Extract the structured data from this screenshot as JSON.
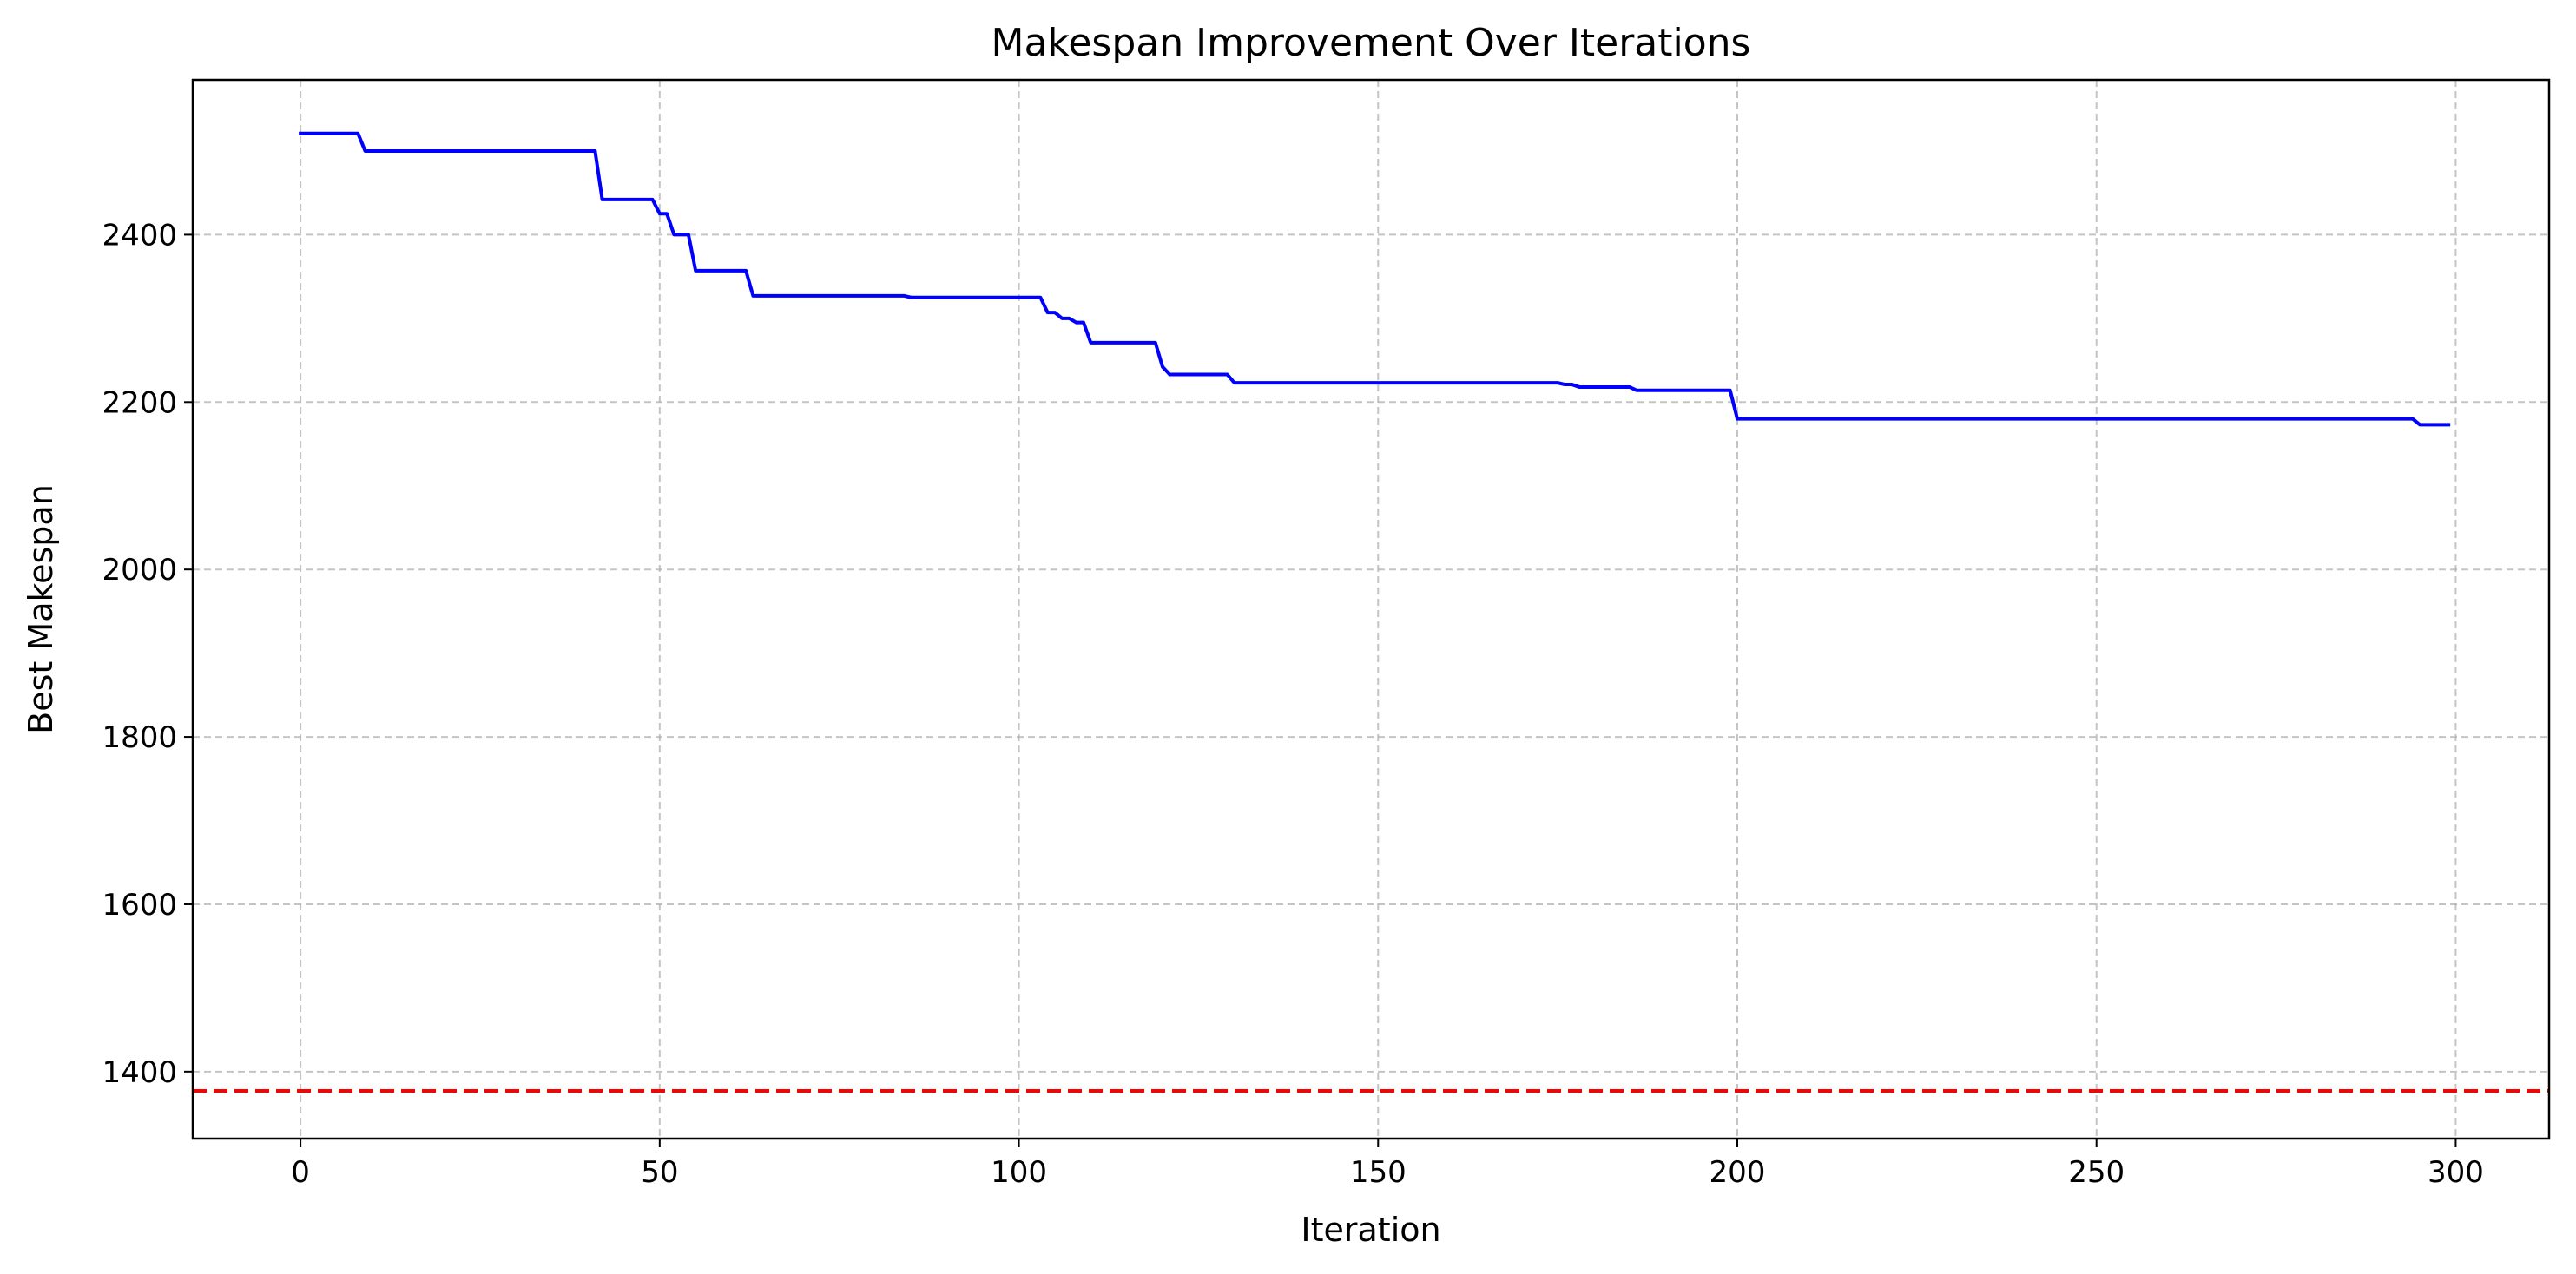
{
  "chart_data": {
    "type": "line",
    "title": "Makespan Improvement Over Iterations",
    "xlabel": "Iteration",
    "ylabel": "Best Makespan",
    "xlim": [
      -15,
      313
    ],
    "ylim": [
      1320,
      2585
    ],
    "x_ticks": [
      0,
      50,
      100,
      150,
      200,
      250,
      300
    ],
    "y_ticks": [
      1400,
      1600,
      1800,
      2000,
      2200,
      2400
    ],
    "grid": true,
    "grid_style": "dashed",
    "legend": "none",
    "series": [
      {
        "color": "#0000ff",
        "style": "solid",
        "points": [
          [
            0,
            2521
          ],
          [
            8,
            2521
          ],
          [
            9,
            2500
          ],
          [
            41,
            2500
          ],
          [
            42,
            2442
          ],
          [
            49,
            2442
          ],
          [
            50,
            2425
          ],
          [
            51,
            2425
          ],
          [
            52,
            2400
          ],
          [
            54,
            2400
          ],
          [
            55,
            2357
          ],
          [
            62,
            2357
          ],
          [
            63,
            2327
          ],
          [
            84,
            2327
          ],
          [
            85,
            2325
          ],
          [
            103,
            2325
          ],
          [
            104,
            2307
          ],
          [
            105,
            2307
          ],
          [
            106,
            2300
          ],
          [
            107,
            2300
          ],
          [
            108,
            2295
          ],
          [
            109,
            2295
          ],
          [
            110,
            2271
          ],
          [
            119,
            2271
          ],
          [
            120,
            2242
          ],
          [
            121,
            2233
          ],
          [
            129,
            2233
          ],
          [
            130,
            2223
          ],
          [
            175,
            2223
          ],
          [
            176,
            2221
          ],
          [
            177,
            2221
          ],
          [
            178,
            2218
          ],
          [
            185,
            2218
          ],
          [
            186,
            2214
          ],
          [
            199,
            2214
          ],
          [
            200,
            2180
          ],
          [
            294,
            2180
          ],
          [
            295,
            2173
          ],
          [
            299,
            2173
          ]
        ]
      },
      {
        "color": "#ff0000",
        "style": "dashed",
        "y": 1377
      }
    ]
  }
}
